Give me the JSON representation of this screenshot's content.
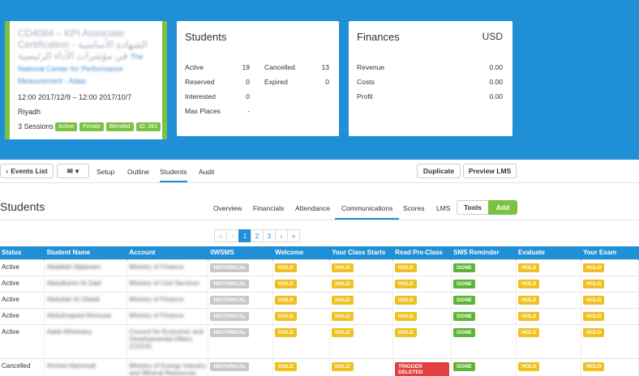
{
  "event": {
    "title": "CD4084 – KPI Associate Certification - الشهادة الأساسية في مؤشرات الأداء الرئيسية",
    "org": "The National Center for Performance Measurement - Adaa",
    "dates": "12:00 2017/12/9 – 12:00 2017/10/7",
    "city": "Riyadh",
    "sessions": "3 Sessions",
    "badges": [
      "Active",
      "Private",
      "Blended",
      "ID: 361"
    ]
  },
  "students_panel": {
    "title": "Students",
    "active_label": "Active",
    "active_value": "19",
    "reserved_label": "Reserved",
    "reserved_value": "0",
    "interested_label": "Interested",
    "interested_value": "0",
    "maxplaces_label": "Max Places",
    "maxplaces_value": "-",
    "cancelled_label": "Cancelled",
    "cancelled_value": "13",
    "expired_label": "Expired",
    "expired_value": "0"
  },
  "finances_panel": {
    "title": "Finances",
    "currency": "USD",
    "revenue_label": "Revenue",
    "revenue_value": "0.00",
    "costs_label": "Costs",
    "costs_value": "0.00",
    "profit_label": "Profit",
    "profit_value": "0.00"
  },
  "toolbar": {
    "events_list": "Events List",
    "setup": "Setup",
    "outline": "Outline",
    "students": "Students",
    "audit": "Audit",
    "duplicate": "Duplicate",
    "preview_lms": "Preview LMS"
  },
  "section": {
    "title": "Students",
    "tabs": [
      "Overview",
      "Financials",
      "Attendance",
      "Communications",
      "Scores",
      "LMS"
    ],
    "tools": "Tools",
    "add": "Add"
  },
  "pagination": [
    "«",
    "‹",
    "1",
    "2",
    "3",
    "›",
    "»"
  ],
  "table": {
    "headers": [
      "Status",
      "Student Name",
      "Account",
      "0WSMS",
      "Welcome",
      "Your Class Starts",
      "Read Pre-Class",
      "SMS Reminder",
      "Evaluate",
      "Your Exam"
    ],
    "rows": [
      {
        "status": "Active",
        "name": "Abdallah Aljabreen",
        "account": "Ministry of Finance",
        "c3": "HISTORICAL",
        "c4": "HOLD",
        "c5": "HOLD",
        "c6": "HOLD",
        "c7": "DONE",
        "c8": "HOLD",
        "c9": "HOLD"
      },
      {
        "status": "Active",
        "name": "Abdulkarim Al Zaid",
        "account": "Ministry of Civil Services",
        "c3": "HISTORICAL",
        "c4": "HOLD",
        "c5": "HOLD",
        "c6": "HOLD",
        "c7": "DONE",
        "c8": "HOLD",
        "c9": "HOLD"
      },
      {
        "status": "Active",
        "name": "Abdullah Al Obaidi",
        "account": "Ministry of Finance",
        "c3": "HISTORICAL",
        "c4": "HOLD",
        "c5": "HOLD",
        "c6": "HOLD",
        "c7": "DONE",
        "c8": "HOLD",
        "c9": "HOLD"
      },
      {
        "status": "Active",
        "name": "Abdulmajeed Almousa",
        "account": "Ministry of Finance",
        "c3": "HISTORICAL",
        "c4": "HOLD",
        "c5": "HOLD",
        "c6": "HOLD",
        "c7": "DONE",
        "c8": "HOLD",
        "c9": "HOLD"
      },
      {
        "status": "Active",
        "name": "Adeb Alhmeany",
        "account": "Council for Economic and Developmental Affairs (CEDA)",
        "c3": "HISTORICAL",
        "c4": "HOLD",
        "c5": "HOLD",
        "c6": "HOLD",
        "c7": "DONE",
        "c8": "HOLD",
        "c9": "HOLD"
      },
      {
        "status": "Cancelled",
        "name": "Ahmed Alamoudi",
        "account": "Ministry of Energy Industry and Mineral Resources",
        "c3": "HISTORICAL",
        "c4": "HOLD",
        "c5": "HOLD",
        "c6": "TRIGGER DELETED",
        "c7": "DONE",
        "c8": "HOLD",
        "c9": "HOLD"
      }
    ]
  }
}
